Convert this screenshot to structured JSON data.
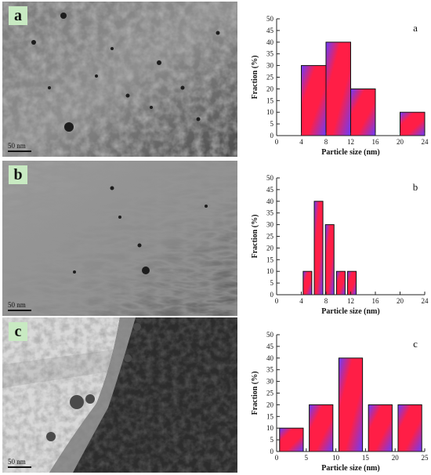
{
  "panels": [
    {
      "letter": "a",
      "scale_label": "50 nm",
      "tem_tone": "mottled-dark",
      "chart_data": {
        "type": "bar",
        "panel_label": "a",
        "xlabel": "Particle size (nm)",
        "ylabel": "Fraction (%)",
        "xlim": [
          0,
          24
        ],
        "ylim": [
          0,
          50
        ],
        "xticks": [
          0,
          4,
          8,
          12,
          16,
          20,
          24
        ],
        "yticks": [
          0,
          5,
          10,
          15,
          20,
          25,
          30,
          35,
          40,
          45,
          50
        ],
        "bars": [
          {
            "x0": 4,
            "x1": 8,
            "value": 30
          },
          {
            "x0": 8,
            "x1": 12,
            "value": 40
          },
          {
            "x0": 12,
            "x1": 16,
            "value": 20
          },
          {
            "x0": 20,
            "x1": 24,
            "value": 10
          }
        ]
      }
    },
    {
      "letter": "b",
      "scale_label": "50 nm",
      "tem_tone": "fibrous",
      "chart_data": {
        "type": "bar",
        "panel_label": "b",
        "xlabel": "Particle size (nm)",
        "ylabel": "Fraction (%)",
        "xlim": [
          0,
          24
        ],
        "ylim": [
          0,
          50
        ],
        "xticks": [
          0,
          4,
          8,
          12,
          16,
          20,
          24
        ],
        "yticks": [
          0,
          5,
          10,
          15,
          20,
          25,
          30,
          35,
          40,
          45,
          50
        ],
        "bars": [
          {
            "x0": 4.3,
            "x1": 5.7,
            "value": 10
          },
          {
            "x0": 6.1,
            "x1": 7.5,
            "value": 40
          },
          {
            "x0": 7.9,
            "x1": 9.3,
            "value": 30
          },
          {
            "x0": 9.7,
            "x1": 11.1,
            "value": 10
          },
          {
            "x0": 11.5,
            "x1": 12.9,
            "value": 10
          }
        ]
      }
    },
    {
      "letter": "c",
      "scale_label": "50 nm",
      "tem_tone": "edge",
      "chart_data": {
        "type": "bar",
        "panel_label": "c",
        "xlabel": "Particle size (nm)",
        "ylabel": "Fraction (%)",
        "xlim": [
          0,
          25
        ],
        "ylim": [
          0,
          50
        ],
        "xticks": [
          0,
          5,
          10,
          15,
          20,
          25
        ],
        "yticks": [
          0,
          5,
          10,
          15,
          20,
          25,
          30,
          35,
          40,
          45,
          50
        ],
        "bars": [
          {
            "x0": 0.5,
            "x1": 4.5,
            "value": 10
          },
          {
            "x0": 5.5,
            "x1": 9.5,
            "value": 20
          },
          {
            "x0": 10.5,
            "x1": 14.5,
            "value": 40
          },
          {
            "x0": 15.5,
            "x1": 19.5,
            "value": 20
          },
          {
            "x0": 20.5,
            "x1": 24.5,
            "value": 20
          }
        ]
      }
    }
  ],
  "colors": {
    "bar_red": "#ff1e46",
    "bar_blue": "#6a3cff",
    "axis": "#222222",
    "label_bg": "#c8eac2"
  }
}
